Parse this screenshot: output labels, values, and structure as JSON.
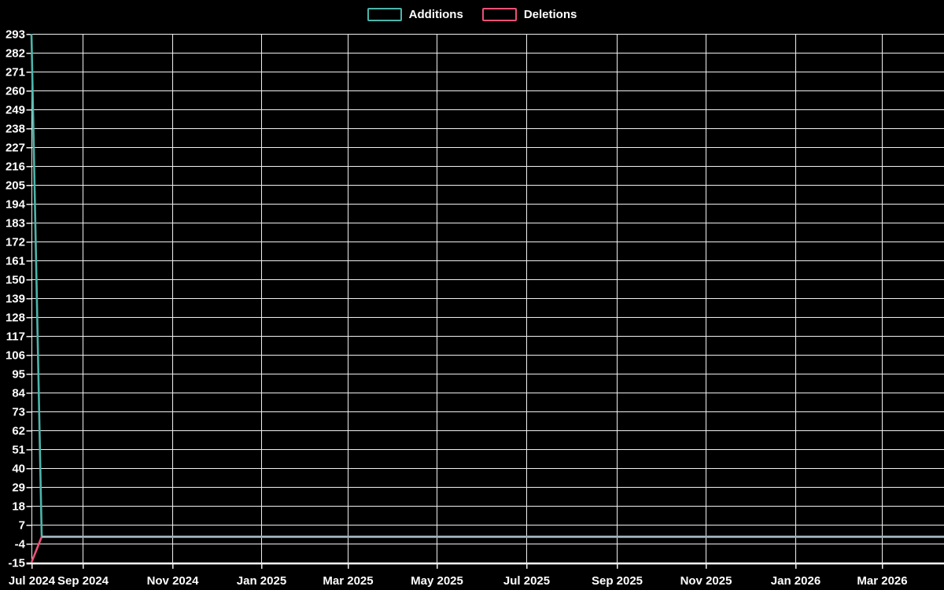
{
  "chart_data": {
    "type": "line",
    "title": "",
    "background_color": "#000000",
    "text_color": "#ffffff",
    "grid": true,
    "grid_color": "#f0f0f0",
    "legend_position": "top-center",
    "x_axis": {
      "label": "",
      "unit": "date",
      "range_days": [
        0,
        624
      ],
      "ticks": [
        {
          "label": "Jul 2024",
          "day": 0
        },
        {
          "label": "Sep 2024",
          "day": 35
        },
        {
          "label": "Nov 2024",
          "day": 96
        },
        {
          "label": "Jan 2025",
          "day": 157
        },
        {
          "label": "Mar 2025",
          "day": 216
        },
        {
          "label": "May 2025",
          "day": 277
        },
        {
          "label": "Jul 2025",
          "day": 338
        },
        {
          "label": "Sep 2025",
          "day": 400
        },
        {
          "label": "Nov 2025",
          "day": 461
        },
        {
          "label": "Jan 2026",
          "day": 522
        },
        {
          "label": "Mar 2026",
          "day": 581
        }
      ]
    },
    "y_axis": {
      "label": "",
      "range": [
        -15,
        293
      ],
      "tick_step": 11,
      "ticks": [
        293,
        282,
        271,
        260,
        249,
        238,
        227,
        216,
        205,
        194,
        183,
        172,
        161,
        150,
        139,
        128,
        117,
        106,
        95,
        84,
        73,
        62,
        51,
        40,
        29,
        18,
        7,
        -4,
        -15
      ]
    },
    "series": [
      {
        "name": "Additions",
        "color": "#4cb5ab",
        "points": [
          {
            "day": 0,
            "value": 293
          },
          {
            "day": 7,
            "value": 0
          },
          {
            "day": 624,
            "value": 0
          }
        ]
      },
      {
        "name": "Deletions",
        "color": "#ec5176",
        "points": [
          {
            "day": 0,
            "value": -15
          },
          {
            "day": 7,
            "value": 0
          },
          {
            "day": 624,
            "value": 0
          }
        ]
      }
    ],
    "overlap_line": {
      "note": "flat section where both series sit at 0",
      "color": "#9fb4c0",
      "value": 0,
      "from_day": 7,
      "to_day": 624
    }
  }
}
